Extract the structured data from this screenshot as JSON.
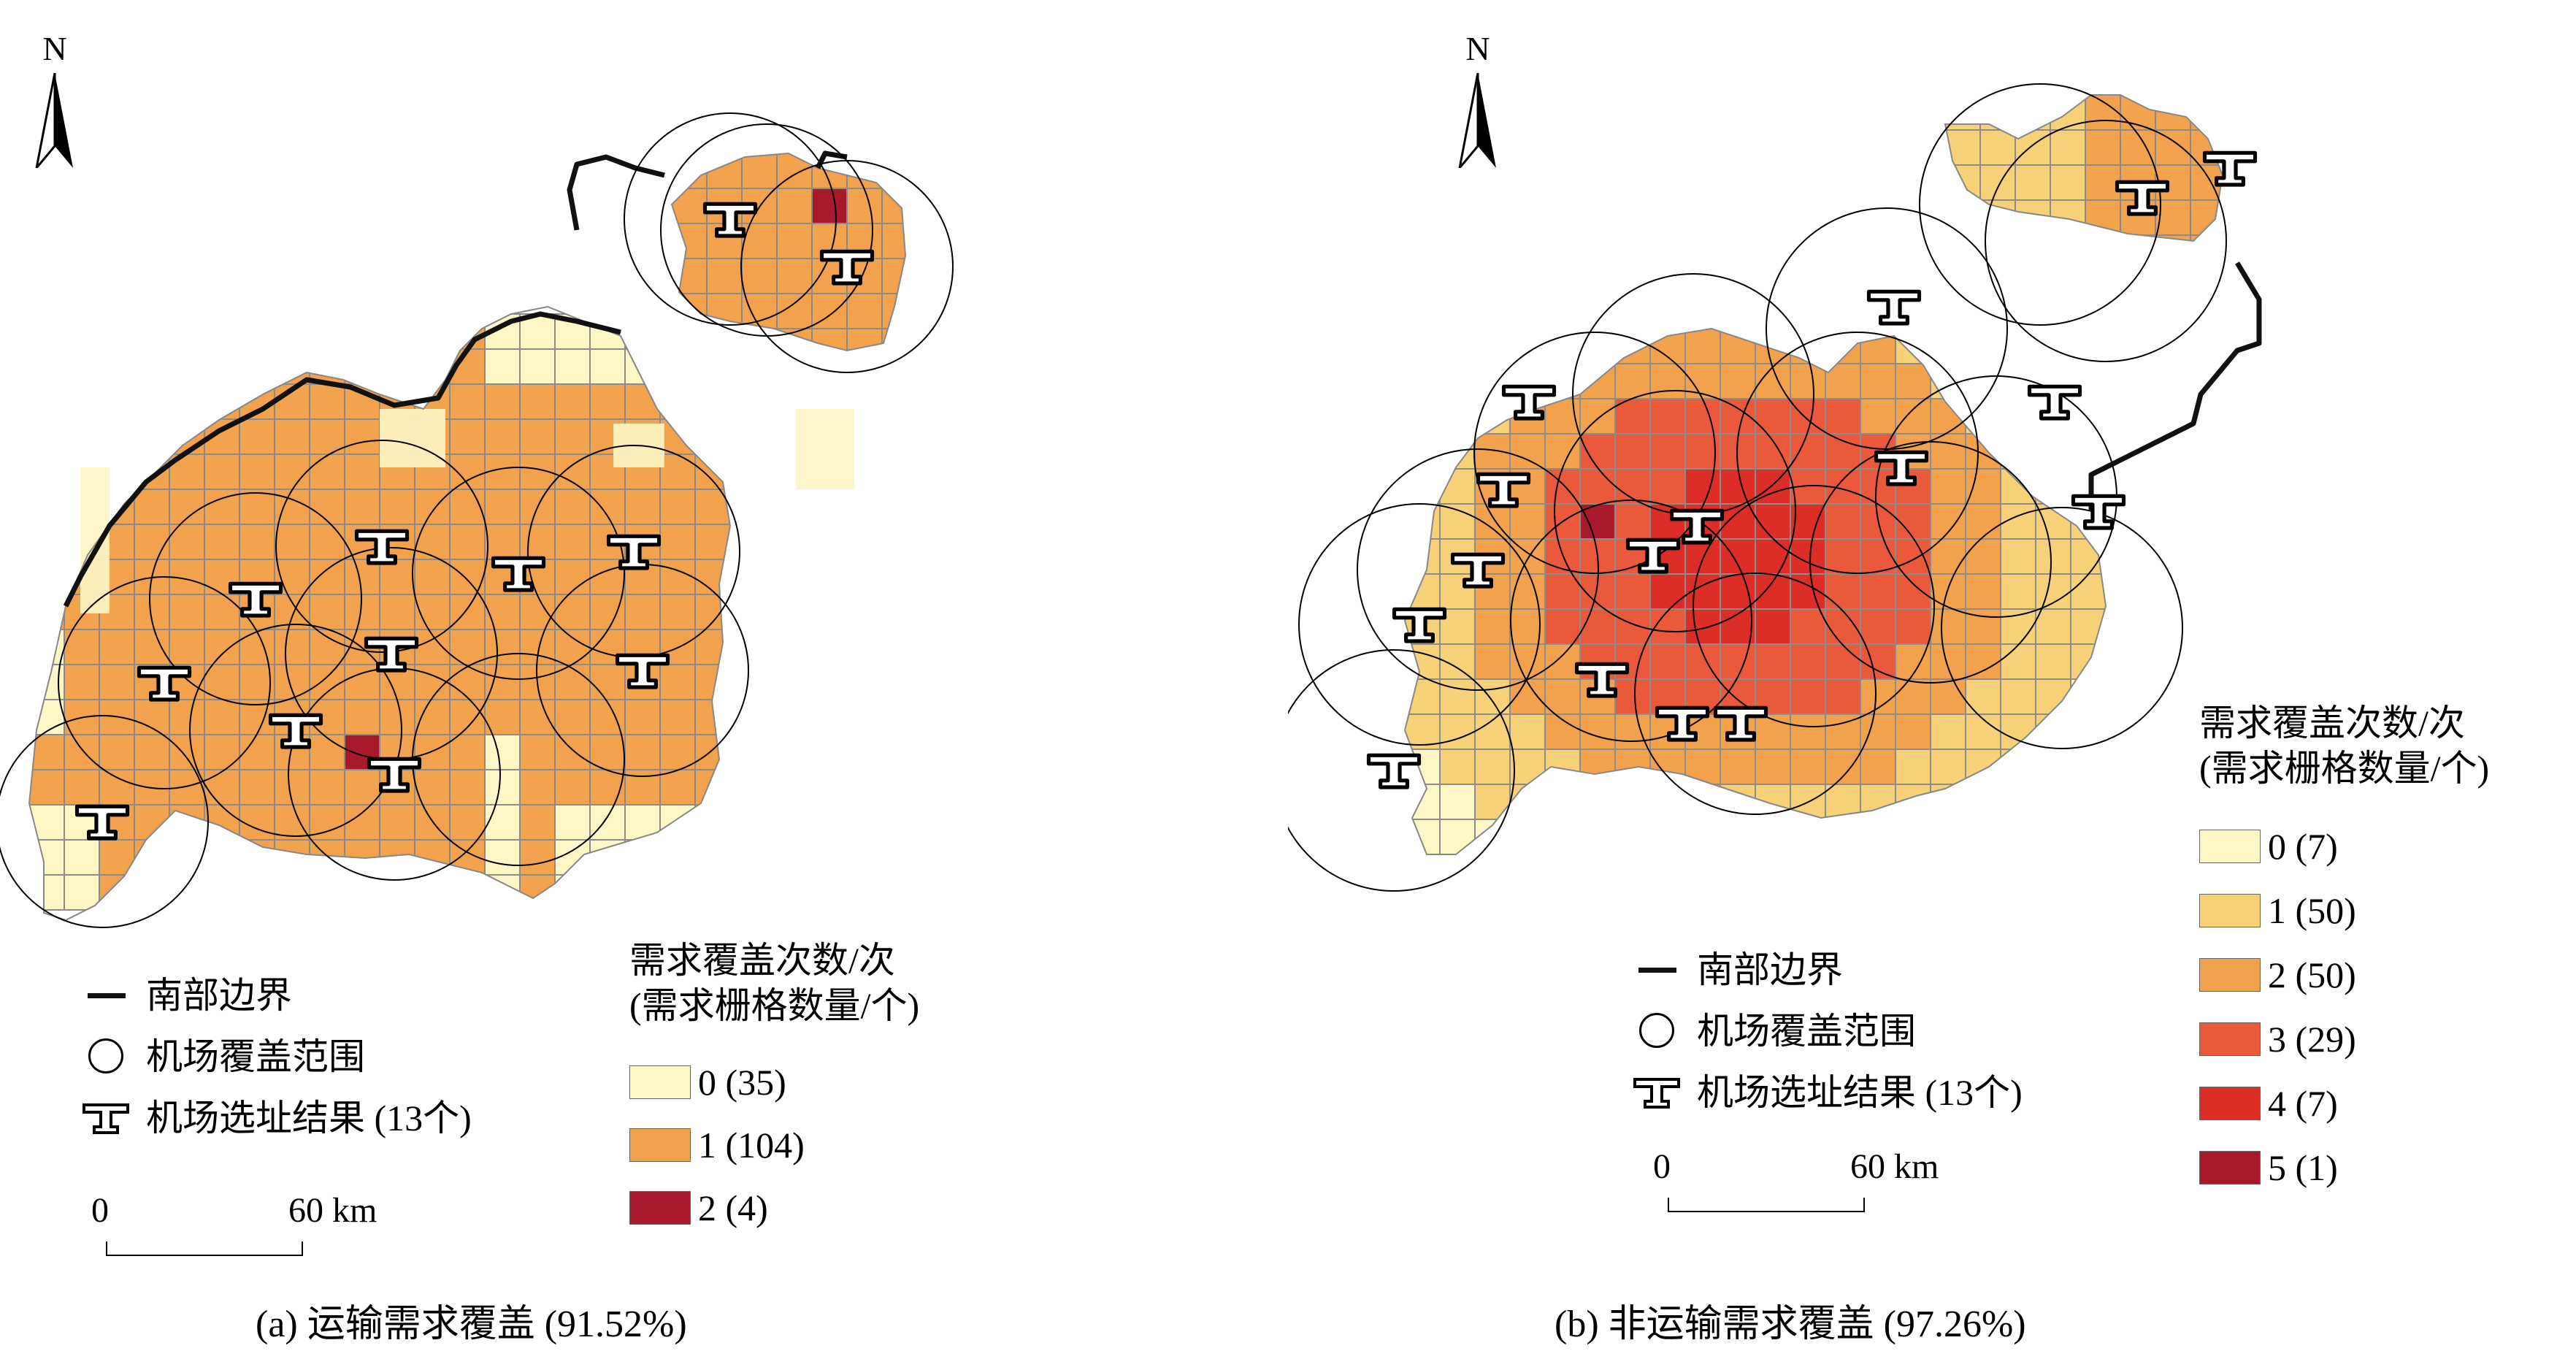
{
  "colors": {
    "c0": "#fdf6c5",
    "c1_a": "#f2a24c",
    "c2_a": "#a8192b",
    "c1_b": "#f6d178",
    "c2_b": "#f2a24c",
    "c3_b": "#e9593a",
    "c4_b": "#dc2d27",
    "c5_b": "#a8192b",
    "grid": "#8c8c8c",
    "boundary": "#111111",
    "circle": "#000000"
  },
  "panel_a": {
    "north": "N",
    "caption": "(a) 运输需求覆盖 (91.52%)",
    "legend_symbols": {
      "boundary_label": "南部边界",
      "coverage_label": "机场覆盖范围",
      "site_label": "机场选址结果 (13个)"
    },
    "scale": {
      "zero": "0",
      "end": "60 km"
    },
    "legend_classes": {
      "title_line1": "需求覆盖次数/次",
      "title_line2": "(需求栅格数量/个)",
      "items": [
        {
          "label": "0 (35)",
          "color": "#fdf6c5"
        },
        {
          "label": "1 (104)",
          "color": "#f2a24c"
        },
        {
          "label": "2 (4)",
          "color": "#a8192b"
        }
      ]
    }
  },
  "panel_b": {
    "north": "N",
    "caption": "(b) 非运输需求覆盖 (97.26%)",
    "legend_symbols": {
      "boundary_label": "南部边界",
      "coverage_label": "机场覆盖范围",
      "site_label": "机场选址结果 (13个)"
    },
    "scale": {
      "zero": "0",
      "end": "60 km"
    },
    "legend_classes": {
      "title_line1": "需求覆盖次数/次",
      "title_line2": "(需求栅格数量/个)",
      "items": [
        {
          "label": "0 (7)",
          "color": "#fdf6c5"
        },
        {
          "label": "1 (50)",
          "color": "#f6d178"
        },
        {
          "label": "2 (50)",
          "color": "#f2a24c"
        },
        {
          "label": "3 (29)",
          "color": "#e9593a"
        },
        {
          "label": "4 (7)",
          "color": "#dc2d27"
        },
        {
          "label": "5 (1)",
          "color": "#a8192b"
        }
      ]
    }
  }
}
